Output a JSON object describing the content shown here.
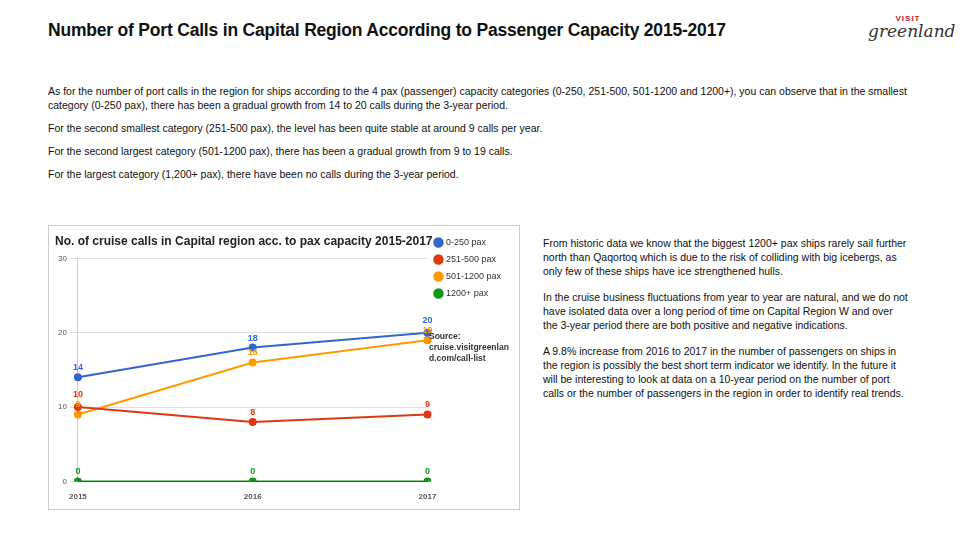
{
  "page": {
    "title": "Number of Port Calls in Capital Region According to Passenger Capacity 2015-2017",
    "logo": [
      "VISIT",
      "greenland"
    ],
    "intro": [
      "As for the number of port calls in the region for ships according to the 4 pax (passenger) capacity categories (0-250, 251-500, 501-1200 and 1200+), you can observe that in the smallest category (0-250 pax), there has been a gradual growth from 14 to 20 calls during the 3-year period.",
      "For the second smallest category (251-500 pax), the level has been quite stable at around 9 calls per year.",
      "For the second largest category (501-1200 pax), there has been a gradual growth from 9 to 19 calls.",
      "For the largest category (1,200+ pax), there have been no calls during the 3-year period."
    ],
    "notes": [
      "From historic data we know that the biggest 1200+ pax ships rarely sail further north than Qaqortoq which is due to the risk of colliding with big icebergs, as only few of these ships have ice strengthened hulls.",
      "In the cruise business fluctuations from year to year are natural, and we do not have isolated data over a long period of time on Capital Region W and over the 3-year period there are both positive and negative indications.",
      "A 9.8% increase from 2016 to 2017 in the number of passengers on ships in the region is possibly the best short term indicator we identify. In the future it will be interesting to look at data on a 10-year period on the number of port calls or the number of passengers in the region in order to identify real trends."
    ]
  },
  "chart_data": {
    "type": "line",
    "title": "No. of cruise calls in Capital region acc. to pax capacity 2015-2017",
    "annotation": "Source: cruise.visitgreenland.com/call-list",
    "categories": [
      "2015",
      "2016",
      "2017"
    ],
    "series": [
      {
        "name": "0-250 pax",
        "color": "#3366cc",
        "values": [
          14,
          18,
          20
        ]
      },
      {
        "name": "251-500 pax",
        "color": "#dc3912",
        "values": [
          10,
          8,
          9
        ]
      },
      {
        "name": "501-1200 pax",
        "color": "#ff9900",
        "values": [
          9,
          16,
          19
        ]
      },
      {
        "name": "1200+ pax",
        "color": "#109618",
        "values": [
          0,
          0,
          0
        ]
      }
    ],
    "ylim": [
      0,
      30
    ],
    "yticks": [
      0,
      10,
      20,
      30
    ],
    "grid": true,
    "legend": "right",
    "data_labels": true,
    "marker": "circle"
  }
}
